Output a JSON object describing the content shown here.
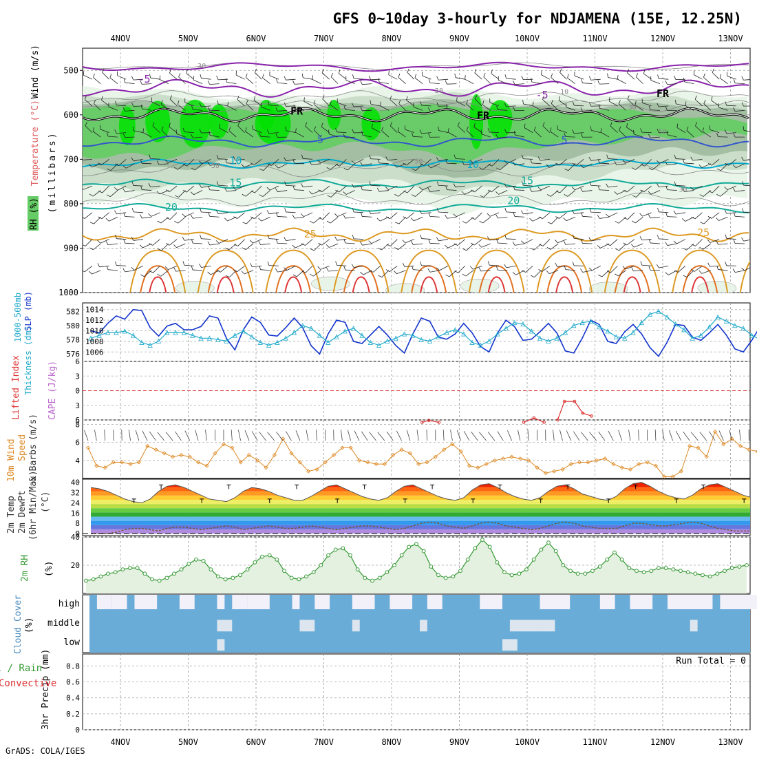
{
  "title": "GFS 0~10day 3-hourly for NDJAMENA (15E, 12.25N)",
  "footer": "GrADS: COLA/IGES",
  "dates": [
    "4NOV",
    "5NOV",
    "6NOV",
    "7NOV",
    "8NOV",
    "9NOV",
    "10NOV",
    "11NOV",
    "12NOV",
    "13NOV"
  ],
  "colors": {
    "rh_light": "#e8f4e8",
    "rh_mid": "#c8dcc8",
    "rh_dark": "#a0bca0",
    "rh_green": "#66cc66",
    "rh_bright": "#00e000",
    "sst_blue": "#3355cc",
    "sst_cyan": "#00aacc",
    "sst_teal": "#11aa99",
    "sst_orange": "#dd9922",
    "sst_red": "#dd3333",
    "slp": "#1133cc",
    "thick": "#22aacc",
    "wind10": "#dd8822",
    "rh2m": "#339933",
    "cloud": "#6aacd8",
    "purple": "#8822aa"
  },
  "chart_data": [
    {
      "type": "contour",
      "panel": "upper-air",
      "ylabel_parts": [
        "RH (%)",
        "Temperature (°C)",
        "Wind (m/s)"
      ],
      "yunit": "(millibars)",
      "yticks": [
        500,
        600,
        700,
        800,
        900,
        1000
      ],
      "ylim": [
        450,
        1000
      ],
      "contour_labels": [
        {
          "text": "-5",
          "c": "purple",
          "d": 0.35,
          "p": 520
        },
        {
          "text": "-5",
          "c": "purple",
          "d": 6.22,
          "p": 555
        },
        {
          "text": "FR",
          "c": "black",
          "d": 2.6,
          "p": 592
        },
        {
          "text": "FR",
          "c": "black",
          "d": 5.35,
          "p": 602
        },
        {
          "text": "FR",
          "c": "black",
          "d": 8.0,
          "p": 552
        },
        {
          "text": "5",
          "c": "blue",
          "d": 2.95,
          "p": 655
        },
        {
          "text": "5",
          "c": "blue",
          "d": 6.55,
          "p": 657
        },
        {
          "text": "10",
          "c": "cyan",
          "d": 1.7,
          "p": 703
        },
        {
          "text": "10",
          "c": "cyan",
          "d": 5.2,
          "p": 712
        },
        {
          "text": "15",
          "c": "teal",
          "d": 1.7,
          "p": 753
        },
        {
          "text": "15",
          "c": "teal",
          "d": 6.0,
          "p": 748
        },
        {
          "text": "20",
          "c": "teal",
          "d": 0.75,
          "p": 808
        },
        {
          "text": "20",
          "c": "teal",
          "d": 5.8,
          "p": 793
        },
        {
          "text": "25",
          "c": "orange",
          "d": 2.8,
          "p": 868
        },
        {
          "text": "25",
          "c": "orange",
          "d": 8.6,
          "p": 865
        },
        {
          "text": "30",
          "c": "gray",
          "d": 1.2,
          "p": 487
        },
        {
          "text": "30",
          "c": "gray",
          "d": 4.7,
          "p": 543
        },
        {
          "text": "30",
          "c": "gray",
          "d": 7.55,
          "p": 580
        },
        {
          "text": "30",
          "c": "gray",
          "d": 8.3,
          "p": 765
        },
        {
          "text": "10",
          "c": "gray",
          "d": 6.55,
          "p": 545
        },
        {
          "text": "50",
          "c": "gray",
          "d": 1.4,
          "p": 712
        },
        {
          "text": "50",
          "c": "gray",
          "d": 4.4,
          "p": 702
        },
        {
          "text": "50",
          "c": "gray",
          "d": 8.0,
          "p": 635
        }
      ]
    },
    {
      "type": "line",
      "panel": "slp-thickness",
      "ylabel_parts": [
        "1000-500mb",
        "Thickness (dm)",
        "SLP (mb)"
      ],
      "left_ticks": [
        576,
        578,
        580,
        582
      ],
      "right_ticks": [
        1006,
        1008,
        1010,
        1012,
        1014
      ],
      "series": [
        {
          "name": "SLP (mb)",
          "color": "slp",
          "values": [
            1010,
            1009.6,
            1011.4,
            1012.8,
            1012.2,
            1014,
            1013.8,
            1010.6,
            1009,
            1010.9,
            1011.4,
            1010.2,
            1010.2,
            1010.8,
            1012.8,
            1012.4,
            1008.6,
            1006.4,
            1010.2,
            1012.6,
            1011.6,
            1009.2,
            1009,
            1010.6,
            1012.4,
            1010.6,
            1007.2,
            1005.6,
            1009.4,
            1012,
            1011.6,
            1008,
            1007.6,
            1009.2,
            1010.8,
            1009.2,
            1007.2,
            1005.8,
            1009.4,
            1012.4,
            1011.8,
            1008.8,
            1008.4,
            1009.4,
            1011.4,
            1009.6,
            1007,
            1006,
            1009.6,
            1012,
            1010.8,
            1008.2,
            1008.4,
            1009.8,
            1011.4,
            1009.6,
            1006.2,
            1005.8,
            1008.6,
            1012,
            1011.2,
            1008,
            1007.6,
            1009.8,
            1011.2,
            1009.4,
            1006.8,
            1005.2,
            1007.8,
            1011.2,
            1011,
            1008.8,
            1008.2,
            1009.6,
            1011.2,
            1009.2,
            1006.6,
            1006,
            1008.2,
            1010.8,
            1010.2,
            1009.8,
            1009.6,
            1010,
            1012.6
          ]
        },
        {
          "name": "Thickness (dm)",
          "color": "thick",
          "values": [
            578.2,
            578.6,
            579,
            579,
            579.2,
            578.6,
            577.6,
            577.2,
            577.8,
            579,
            579,
            579,
            578.6,
            578.2,
            578.2,
            578,
            577.8,
            578.6,
            579.2,
            578.4,
            577.6,
            577.2,
            577.6,
            578.2,
            579,
            580,
            579.6,
            578.6,
            577.6,
            578.4,
            579.2,
            579.6,
            578.6,
            577.6,
            577.2,
            577.8,
            578.2,
            578.8,
            578.6,
            578,
            577.8,
            578.4,
            579,
            579.4,
            578.8,
            577.6,
            577.2,
            577.8,
            578.8,
            579.6,
            580.4,
            580.2,
            579.2,
            578.2,
            577.8,
            578.2,
            579,
            580,
            580.4,
            580.6,
            579.8,
            579.2,
            578.4,
            578.2,
            579,
            580.4,
            581.6,
            582,
            581.2,
            580.2,
            579.4,
            578.2,
            578.6,
            579.8,
            581.2,
            580.6,
            580,
            579.6,
            578.6,
            578,
            578.2,
            578.6,
            579.2,
            578.8,
            577.2
          ]
        }
      ]
    },
    {
      "type": "line",
      "panel": "lifted-index-cape",
      "ylabel_parts": [
        "Lifted Index",
        "CAPE (J/kg)"
      ],
      "left_ticks": [
        -6,
        -3,
        0,
        3,
        6
      ],
      "left_ticklabels": [
        "6",
        "3",
        "0",
        "3",
        "6"
      ],
      "series": [
        {
          "name": "CAPE (J/kg)",
          "color": "sst_red",
          "segments": [
            [
              [
                4.45,
                6.5
              ],
              [
                4.55,
                6.1
              ],
              [
                4.7,
                6.5
              ]
            ],
            [
              [
                5.95,
                6.5
              ],
              [
                6.1,
                5.6
              ],
              [
                6.25,
                6.5
              ]
            ],
            [
              [
                6.45,
                6.0
              ],
              [
                6.55,
                2.2
              ],
              [
                6.7,
                2.2
              ],
              [
                6.82,
                4.6
              ],
              [
                6.95,
                5.2
              ]
            ]
          ]
        }
      ]
    },
    {
      "type": "line",
      "panel": "10m-wind",
      "ylabel_parts": [
        "10m Wind",
        "Speed",
        "& Barbs"
      ],
      "yunit": "(m/s)",
      "left_ticks": [
        4,
        6,
        8
      ],
      "series": [
        {
          "name": "Speed (m/s)",
          "color": "wind10",
          "values": [
            5.4,
            3.4,
            3.2,
            3.8,
            3.8,
            3.6,
            3.8,
            5.6,
            5.2,
            4.8,
            4.4,
            4.6,
            4.4,
            3.8,
            3.4,
            4.8,
            5.8,
            5.4,
            3.8,
            4.6,
            4.0,
            3.2,
            4.6,
            6.4,
            4.8,
            3.8,
            2.8,
            3.0,
            3.8,
            4.6,
            5.4,
            5.4,
            4.0,
            3.8,
            3.6,
            3.6,
            4.6,
            5.2,
            4.8,
            3.6,
            3.8,
            4.4,
            5.2,
            5.8,
            5.0,
            3.4,
            3.2,
            3.6,
            4.0,
            4.2,
            4.4,
            4.2,
            4.0,
            3.2,
            2.6,
            2.8,
            3.0,
            3.6,
            3.8,
            3.8,
            4.0,
            4.2,
            3.6,
            3.2,
            3.0,
            3.6,
            3.8,
            3.4,
            2.2,
            2.2,
            2.8,
            5.6,
            5.4,
            4.4,
            7.2,
            5.8,
            6.4,
            5.6,
            5.2,
            5.0,
            4.6,
            6.0,
            8.0,
            6.4,
            6.8,
            5.0,
            5.4
          ]
        }
      ]
    },
    {
      "type": "area",
      "panel": "2m-temp",
      "ylabel_parts": [
        "2m Temp",
        "2m DewPt",
        "(6hr Min/Max)"
      ],
      "yunit": "(°C)",
      "left_ticks": [
        0,
        8,
        16,
        24,
        32,
        40
      ],
      "series": [
        {
          "name": "2m Temp (°C)",
          "values": [
            36,
            35,
            33,
            30,
            27,
            25,
            24,
            27,
            33,
            37,
            38,
            36,
            33,
            30,
            27,
            26,
            25,
            28,
            33,
            36,
            35,
            33,
            30,
            28,
            26,
            26,
            29,
            33,
            37,
            38,
            35,
            32,
            29,
            27,
            26,
            28,
            33,
            37,
            38,
            35,
            32,
            29,
            27,
            26,
            28,
            34,
            38,
            39,
            36,
            32,
            29,
            27,
            26,
            28,
            33,
            37,
            38,
            35,
            31,
            29,
            27,
            26,
            29,
            35,
            39,
            40,
            37,
            33,
            30,
            28,
            27,
            30,
            35,
            38,
            39,
            36,
            33,
            30,
            28,
            27,
            29,
            33,
            35,
            33,
            25
          ]
        },
        {
          "name": "2m DewPt (°C)",
          "values": [
            0,
            0,
            0,
            1,
            3,
            4,
            4,
            3,
            2,
            4,
            5,
            5,
            4,
            3,
            4,
            5,
            6,
            5,
            3,
            4,
            5,
            6,
            5,
            4,
            4,
            5,
            6,
            5,
            4,
            3,
            4,
            5,
            6,
            6,
            5,
            4,
            3,
            4,
            6,
            8,
            9,
            8,
            6,
            5,
            4,
            6,
            8,
            9,
            8,
            6,
            5,
            4,
            3,
            4,
            6,
            8,
            9,
            8,
            6,
            5,
            4,
            4,
            4,
            6,
            8,
            8,
            7,
            6,
            6,
            7,
            8,
            9,
            8,
            6,
            4,
            3,
            2,
            2,
            2,
            2,
            1,
            1,
            0,
            0,
            0
          ]
        }
      ]
    },
    {
      "type": "area",
      "panel": "2m-rh",
      "ylabel_parts": [
        "2m RH"
      ],
      "yunit": "(%)",
      "left_ticks": [
        20,
        40
      ],
      "series": [
        {
          "name": "2m RH (%)",
          "values": [
            9,
            10,
            12,
            14,
            15,
            17,
            18,
            18,
            14,
            10,
            9,
            11,
            14,
            17,
            21,
            24,
            23,
            17,
            12,
            10,
            11,
            13,
            17,
            22,
            26,
            27,
            24,
            16,
            11,
            10,
            12,
            15,
            20,
            27,
            31,
            32,
            27,
            17,
            11,
            9,
            11,
            15,
            20,
            27,
            33,
            35,
            30,
            19,
            13,
            11,
            12,
            16,
            24,
            32,
            38,
            33,
            22,
            15,
            13,
            14,
            17,
            24,
            31,
            36,
            30,
            20,
            16,
            14,
            14,
            16,
            19,
            24,
            29,
            24,
            18,
            16,
            15,
            16,
            18,
            18,
            17,
            16,
            15,
            14,
            13,
            12,
            14,
            16,
            18,
            19,
            20
          ]
        }
      ]
    },
    {
      "type": "heatmap",
      "panel": "cloud-cover",
      "ylabel_parts": [
        "Cloud Cover"
      ],
      "yunit": "(%)",
      "row_labels": [
        "high",
        "middle",
        "low"
      ]
    },
    {
      "type": "bar",
      "panel": "precip",
      "ylabel_parts": [
        "Total / Rain",
        "Convective",
        "3hr Precip (mm)"
      ],
      "left_ticks": [
        0,
        0.2,
        0.4,
        0.6,
        0.8
      ],
      "annotation": "Run Total = 0",
      "values": []
    }
  ]
}
